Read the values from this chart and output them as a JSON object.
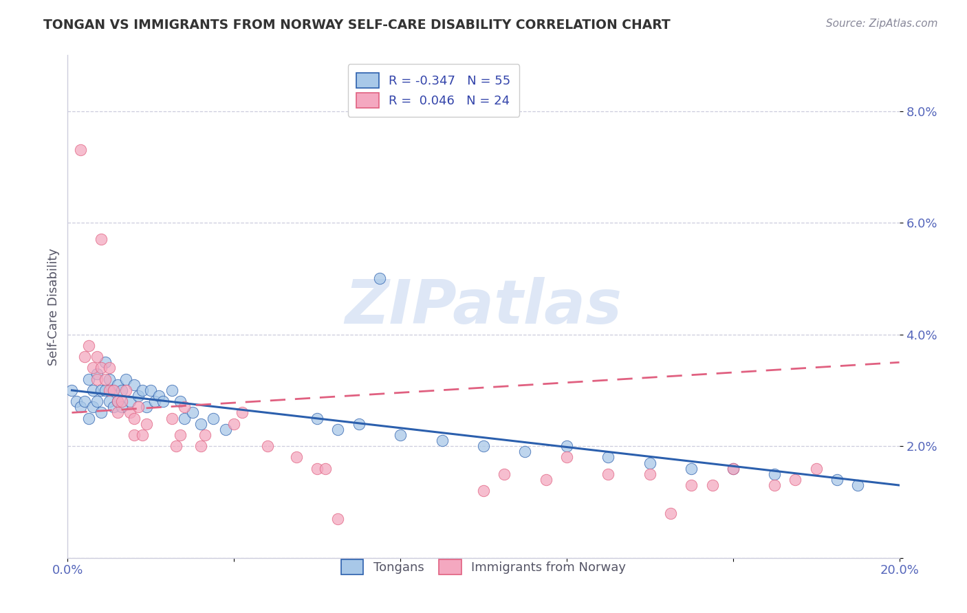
{
  "title": "TONGAN VS IMMIGRANTS FROM NORWAY SELF-CARE DISABILITY CORRELATION CHART",
  "source": "Source: ZipAtlas.com",
  "ylabel": "Self-Care Disability",
  "xlim": [
    0.0,
    0.2
  ],
  "ylim": [
    0.0,
    0.09
  ],
  "xticks": [
    0.0,
    0.04,
    0.08,
    0.12,
    0.16,
    0.2
  ],
  "xticklabels": [
    "0.0%",
    "",
    "",
    "",
    "",
    "20.0%"
  ],
  "yticks": [
    0.0,
    0.02,
    0.04,
    0.06,
    0.08
  ],
  "yticklabels": [
    "",
    "2.0%",
    "4.0%",
    "6.0%",
    "8.0%"
  ],
  "tongan_color": "#a8c8e8",
  "norway_color": "#f4a8c0",
  "tongan_line_color": "#2b5fad",
  "norway_line_color": "#e06080",
  "background_color": "#ffffff",
  "tongan_scatter": [
    [
      0.001,
      0.03
    ],
    [
      0.002,
      0.028
    ],
    [
      0.003,
      0.027
    ],
    [
      0.004,
      0.028
    ],
    [
      0.005,
      0.032
    ],
    [
      0.005,
      0.025
    ],
    [
      0.006,
      0.03
    ],
    [
      0.006,
      0.027
    ],
    [
      0.007,
      0.033
    ],
    [
      0.007,
      0.028
    ],
    [
      0.008,
      0.03
    ],
    [
      0.008,
      0.026
    ],
    [
      0.009,
      0.035
    ],
    [
      0.009,
      0.03
    ],
    [
      0.01,
      0.028
    ],
    [
      0.01,
      0.032
    ],
    [
      0.011,
      0.03
    ],
    [
      0.011,
      0.027
    ],
    [
      0.012,
      0.031
    ],
    [
      0.012,
      0.028
    ],
    [
      0.013,
      0.03
    ],
    [
      0.013,
      0.027
    ],
    [
      0.014,
      0.032
    ],
    [
      0.015,
      0.028
    ],
    [
      0.016,
      0.031
    ],
    [
      0.017,
      0.029
    ],
    [
      0.018,
      0.03
    ],
    [
      0.019,
      0.027
    ],
    [
      0.02,
      0.03
    ],
    [
      0.021,
      0.028
    ],
    [
      0.022,
      0.029
    ],
    [
      0.023,
      0.028
    ],
    [
      0.025,
      0.03
    ],
    [
      0.027,
      0.028
    ],
    [
      0.028,
      0.025
    ],
    [
      0.03,
      0.026
    ],
    [
      0.032,
      0.024
    ],
    [
      0.035,
      0.025
    ],
    [
      0.038,
      0.023
    ],
    [
      0.06,
      0.025
    ],
    [
      0.065,
      0.023
    ],
    [
      0.07,
      0.024
    ],
    [
      0.075,
      0.05
    ],
    [
      0.08,
      0.022
    ],
    [
      0.09,
      0.021
    ],
    [
      0.1,
      0.02
    ],
    [
      0.11,
      0.019
    ],
    [
      0.12,
      0.02
    ],
    [
      0.13,
      0.018
    ],
    [
      0.14,
      0.017
    ],
    [
      0.15,
      0.016
    ],
    [
      0.16,
      0.016
    ],
    [
      0.17,
      0.015
    ],
    [
      0.185,
      0.014
    ],
    [
      0.19,
      0.013
    ]
  ],
  "norway_scatter": [
    [
      0.003,
      0.073
    ],
    [
      0.008,
      0.057
    ],
    [
      0.004,
      0.036
    ],
    [
      0.005,
      0.038
    ],
    [
      0.006,
      0.034
    ],
    [
      0.007,
      0.036
    ],
    [
      0.007,
      0.032
    ],
    [
      0.008,
      0.034
    ],
    [
      0.009,
      0.032
    ],
    [
      0.01,
      0.034
    ],
    [
      0.01,
      0.03
    ],
    [
      0.011,
      0.03
    ],
    [
      0.012,
      0.028
    ],
    [
      0.012,
      0.026
    ],
    [
      0.013,
      0.028
    ],
    [
      0.014,
      0.03
    ],
    [
      0.015,
      0.026
    ],
    [
      0.016,
      0.025
    ],
    [
      0.016,
      0.022
    ],
    [
      0.017,
      0.027
    ],
    [
      0.018,
      0.022
    ],
    [
      0.019,
      0.024
    ],
    [
      0.025,
      0.025
    ],
    [
      0.026,
      0.02
    ],
    [
      0.027,
      0.022
    ],
    [
      0.028,
      0.027
    ],
    [
      0.032,
      0.02
    ],
    [
      0.033,
      0.022
    ],
    [
      0.04,
      0.024
    ],
    [
      0.042,
      0.026
    ],
    [
      0.048,
      0.02
    ],
    [
      0.055,
      0.018
    ],
    [
      0.06,
      0.016
    ],
    [
      0.062,
      0.016
    ],
    [
      0.065,
      0.007
    ],
    [
      0.1,
      0.012
    ],
    [
      0.105,
      0.015
    ],
    [
      0.115,
      0.014
    ],
    [
      0.12,
      0.018
    ],
    [
      0.13,
      0.015
    ],
    [
      0.14,
      0.015
    ],
    [
      0.145,
      0.008
    ],
    [
      0.15,
      0.013
    ],
    [
      0.155,
      0.013
    ],
    [
      0.16,
      0.016
    ],
    [
      0.17,
      0.013
    ],
    [
      0.175,
      0.014
    ],
    [
      0.18,
      0.016
    ]
  ],
  "tongan_trend_start_x": 0.001,
  "tongan_trend_end_x": 0.2,
  "tongan_trend_start_y": 0.03,
  "tongan_trend_end_y": 0.013,
  "norway_trend_start_x": 0.001,
  "norway_trend_end_x": 0.2,
  "norway_trend_start_y": 0.026,
  "norway_trend_end_y": 0.035
}
